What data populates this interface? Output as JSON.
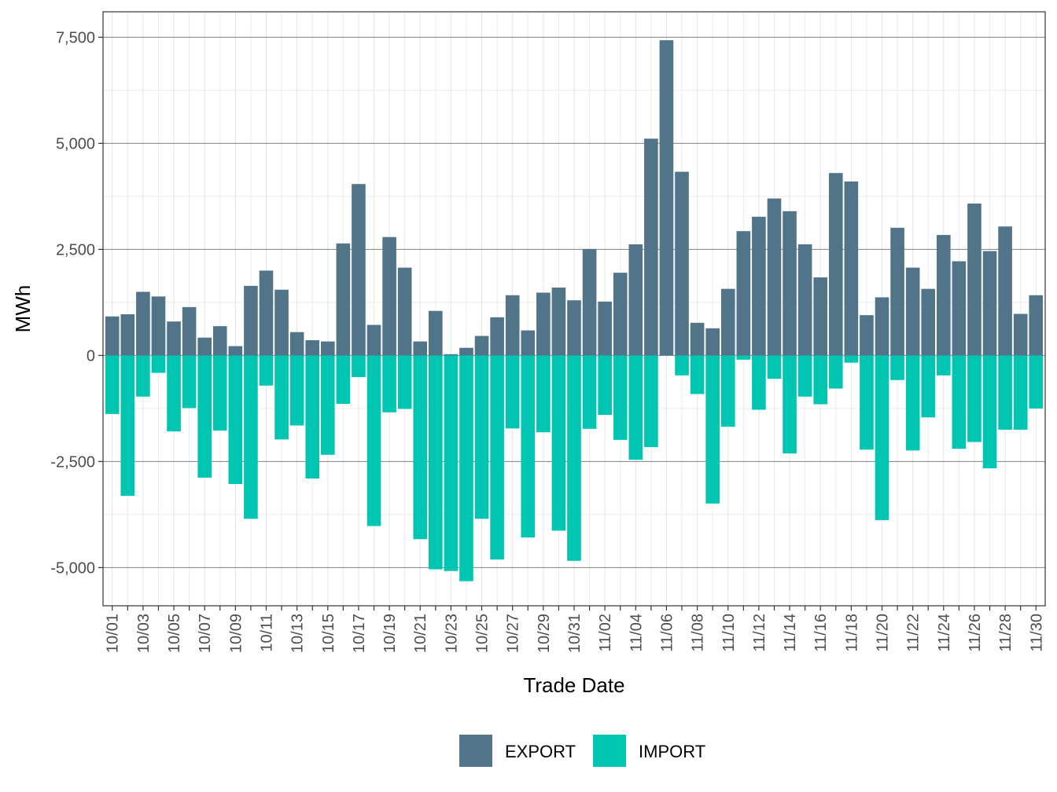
{
  "chart_data": {
    "type": "bar",
    "stacked": true,
    "xlabel": "Trade Date",
    "ylabel": "MWh",
    "ylim": [
      -5900,
      8100
    ],
    "yticks": [
      -5000,
      -2500,
      0,
      2500,
      5000,
      7500
    ],
    "ytick_labels": [
      "-5,000",
      "-2,500",
      "0",
      "2,500",
      "5,000",
      "7,500"
    ],
    "grid": true,
    "legend_position": "bottom",
    "categories": [
      "10/01",
      "10/02",
      "10/03",
      "10/04",
      "10/05",
      "10/06",
      "10/07",
      "10/08",
      "10/09",
      "10/10",
      "10/11",
      "10/12",
      "10/13",
      "10/14",
      "10/15",
      "10/16",
      "10/17",
      "10/18",
      "10/19",
      "10/20",
      "10/21",
      "10/22",
      "10/23",
      "10/24",
      "10/25",
      "10/26",
      "10/27",
      "10/28",
      "10/29",
      "10/30",
      "10/31",
      "11/01",
      "11/02",
      "11/03",
      "11/04",
      "11/05",
      "11/06",
      "11/07",
      "11/08",
      "11/09",
      "11/10",
      "11/11",
      "11/12",
      "11/13",
      "11/14",
      "11/15",
      "11/16",
      "11/17",
      "11/18",
      "11/19",
      "11/20",
      "11/21",
      "11/22",
      "11/23",
      "11/24",
      "11/25",
      "11/26",
      "11/27",
      "11/28",
      "11/29",
      "11/30"
    ],
    "tick_labels": [
      "10/01",
      "10/03",
      "10/05",
      "10/07",
      "10/09",
      "10/11",
      "10/13",
      "10/15",
      "10/17",
      "10/19",
      "10/21",
      "10/23",
      "10/25",
      "10/27",
      "10/29",
      "10/31",
      "11/02",
      "11/04",
      "11/06",
      "11/08",
      "11/10",
      "11/12",
      "11/14",
      "11/16",
      "11/18",
      "11/20",
      "11/22",
      "11/24",
      "11/26",
      "11/28",
      "11/30"
    ],
    "series": [
      {
        "name": "EXPORT",
        "color": "#517489",
        "values": [
          920,
          970,
          1500,
          1390,
          800,
          1140,
          420,
          690,
          220,
          1640,
          2000,
          1550,
          550,
          360,
          330,
          2640,
          4040,
          720,
          2790,
          2070,
          330,
          1050,
          30,
          180,
          460,
          900,
          1420,
          590,
          1480,
          1600,
          1300,
          2510,
          1270,
          1950,
          2620,
          5110,
          7430,
          4330,
          770,
          640,
          1570,
          2930,
          3270,
          3700,
          3400,
          2620,
          1840,
          4300,
          4100,
          950,
          1370,
          3010,
          2070,
          1570,
          2840,
          2220,
          3580,
          2460,
          3040,
          980,
          1420
        ]
      },
      {
        "name": "IMPORT",
        "color": "#00c5b0",
        "values": [
          -1380,
          -3310,
          -970,
          -410,
          -1790,
          -1240,
          -2880,
          -1770,
          -3030,
          -3850,
          -710,
          -1980,
          -1650,
          -2900,
          -2340,
          -1140,
          -510,
          -4020,
          -1340,
          -1260,
          -4330,
          -5040,
          -5080,
          -5320,
          -3850,
          -4810,
          -1720,
          -4290,
          -1810,
          -4130,
          -4840,
          -1730,
          -1400,
          -1990,
          -2460,
          -2160,
          0,
          -470,
          -910,
          -3490,
          -1680,
          -100,
          -1280,
          -550,
          -2310,
          -970,
          -1150,
          -780,
          -170,
          -2220,
          -3880,
          -580,
          -2240,
          -1460,
          -470,
          -2200,
          -2040,
          -2660,
          -1750,
          -1750,
          -1250
        ]
      }
    ]
  }
}
